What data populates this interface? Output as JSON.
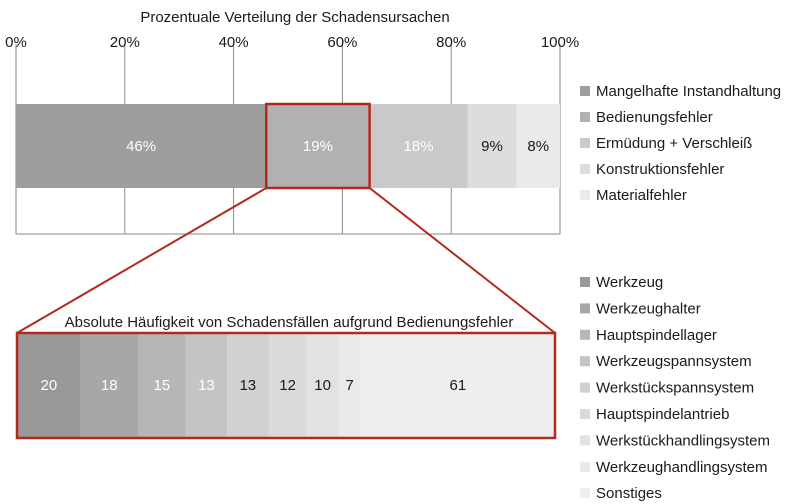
{
  "chart_data": [
    {
      "type": "bar",
      "orientation": "horizontal",
      "stacked": "percent",
      "title": "Prozentuale Verteilung der Schadensursachen",
      "xlim": [
        0,
        100
      ],
      "x_tick_labels": [
        "0%",
        "20%",
        "40%",
        "60%",
        "80%",
        "100%"
      ],
      "grid": "vertical",
      "legend_position": "right",
      "series": [
        {
          "name": "Mangelhafte Instandhaltung",
          "value": 46,
          "label": "46%",
          "color": "#9f9d9e",
          "label_color": "#ffffff"
        },
        {
          "name": "Bedienungsfehler",
          "value": 19,
          "label": "19%",
          "color": "#b2b0b1",
          "label_color": "#ffffff"
        },
        {
          "name": "Ermüdung + Verschleiß",
          "value": 18,
          "label": "18%",
          "color": "#cac8c9",
          "label_color": "#ffffff"
        },
        {
          "name": "Konstruktionsfehler",
          "value": 9,
          "label": "9%",
          "color": "#dedcdd",
          "label_color": "#1a1a1a"
        },
        {
          "name": "Materialfehler",
          "value": 8,
          "label": "8%",
          "color": "#ebe9ea",
          "label_color": "#1a1a1a"
        }
      ],
      "highlight": {
        "series": "Bedienungsfehler",
        "color": "#b22a1d"
      }
    },
    {
      "type": "bar",
      "orientation": "horizontal",
      "stacked": "absolute",
      "title": "Absolute Häufigkeit von Schadensfällen aufgrund  Bedienungsfehler",
      "legend_position": "right",
      "frame_color": "#b22a1d",
      "series": [
        {
          "name": "Werkzeug",
          "value": 20,
          "label": "20",
          "color": "#9a9899",
          "label_color": "#ffffff"
        },
        {
          "name": "Werkzeughalter",
          "value": 18,
          "label": "18",
          "color": "#a8a6a7",
          "label_color": "#ffffff"
        },
        {
          "name": "Hauptspindellager",
          "value": 15,
          "label": "15",
          "color": "#b7b5b6",
          "label_color": "#ffffff"
        },
        {
          "name": "Werkzeugspannsystem",
          "value": 13,
          "label": "13",
          "color": "#c5c3c4",
          "label_color": "#ffffff"
        },
        {
          "name": "Werkstückspannsystem",
          "value": 13,
          "label": "13",
          "color": "#d2d0d1",
          "label_color": "#1a1a1a"
        },
        {
          "name": "Hauptspindelantrieb",
          "value": 12,
          "label": "12",
          "color": "#dbd9da",
          "label_color": "#1a1a1a"
        },
        {
          "name": "Werkstückhandlingsystem",
          "value": 10,
          "label": "10",
          "color": "#e3e1e2",
          "label_color": "#1a1a1a"
        },
        {
          "name": "Werkzeughandlingsystem",
          "value": 7,
          "label": "7",
          "color": "#eae8e9",
          "label_color": "#1a1a1a"
        },
        {
          "name": "Sonstiges",
          "value": 61,
          "label": "61",
          "color": "#efedee",
          "label_color": "#1a1a1a"
        }
      ]
    }
  ]
}
